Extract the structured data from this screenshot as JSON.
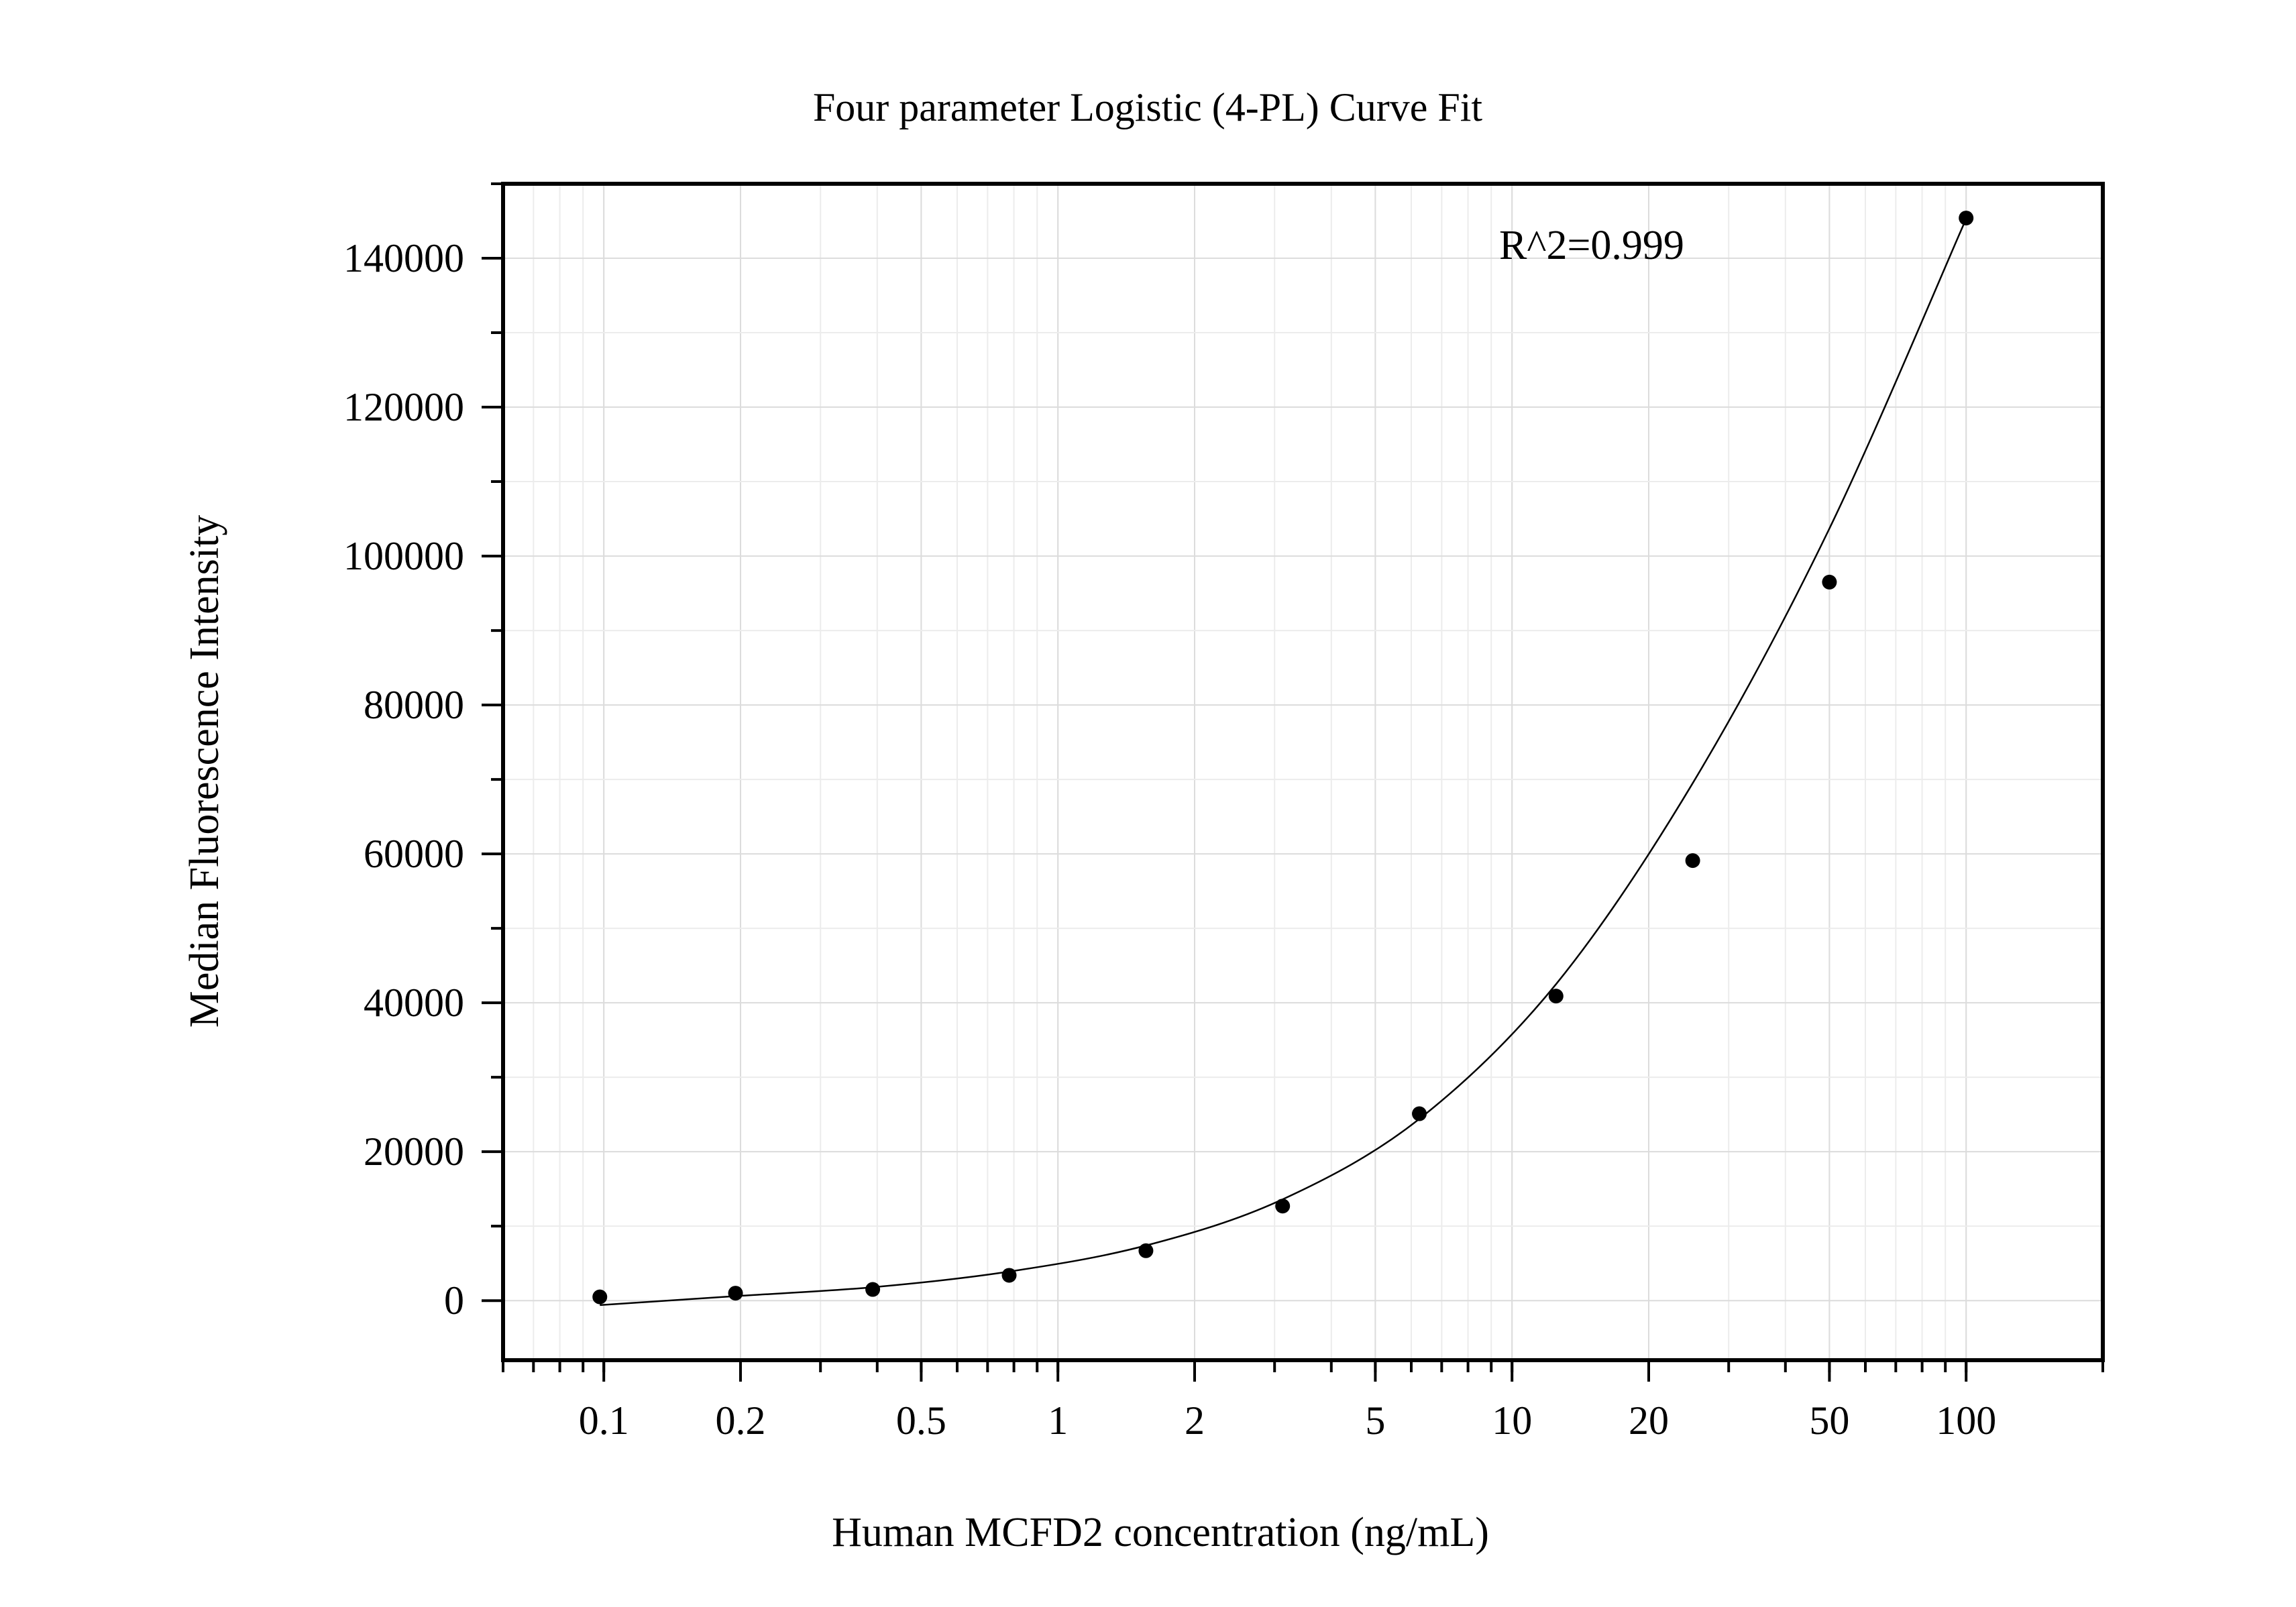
{
  "chart_data": {
    "type": "scatter",
    "title": "Four parameter Logistic (4-PL) Curve Fit",
    "xlabel": "Human MCFD2 concentration (ng/mL)",
    "ylabel": "Median Fluorescence Intensity",
    "x_scale": "log",
    "xlim": [
      0.06,
      200
    ],
    "ylim": [
      -8000,
      150000
    ],
    "x_ticks": [
      0.1,
      0.2,
      0.5,
      1,
      2,
      5,
      10,
      20,
      50,
      100
    ],
    "x_tick_labels": [
      "0.1",
      "0.2",
      "0.5",
      "1",
      "2",
      "5",
      "10",
      "20",
      "50",
      "100"
    ],
    "y_ticks": [
      0,
      20000,
      40000,
      60000,
      80000,
      100000,
      120000,
      140000
    ],
    "y_tick_labels": [
      "0",
      "20000",
      "40000",
      "60000",
      "80000",
      "100000",
      "120000",
      "140000"
    ],
    "grid": true,
    "series": [
      {
        "kind": "points",
        "x": [
          0.098,
          0.195,
          0.391,
          0.781,
          1.5625,
          3.125,
          6.25,
          12.5,
          25,
          50,
          100
        ],
        "y": [
          500,
          1000,
          1500,
          3400,
          6700,
          12700,
          25100,
          40900,
          59100,
          96500,
          145400
        ]
      },
      {
        "kind": "fit",
        "model": "4PL",
        "x_range": [
          0.098,
          100
        ],
        "curve_y": [
          -600,
          600,
          1800,
          3900,
          7400,
          13600,
          24400,
          42500,
          69500,
          103700,
          145300
        ]
      }
    ],
    "annotations": [
      "R^2=0.999"
    ],
    "colors": {
      "points": "#000000",
      "curve": "#000000",
      "frame": "#000000",
      "grid": "#dcdcdc"
    }
  }
}
